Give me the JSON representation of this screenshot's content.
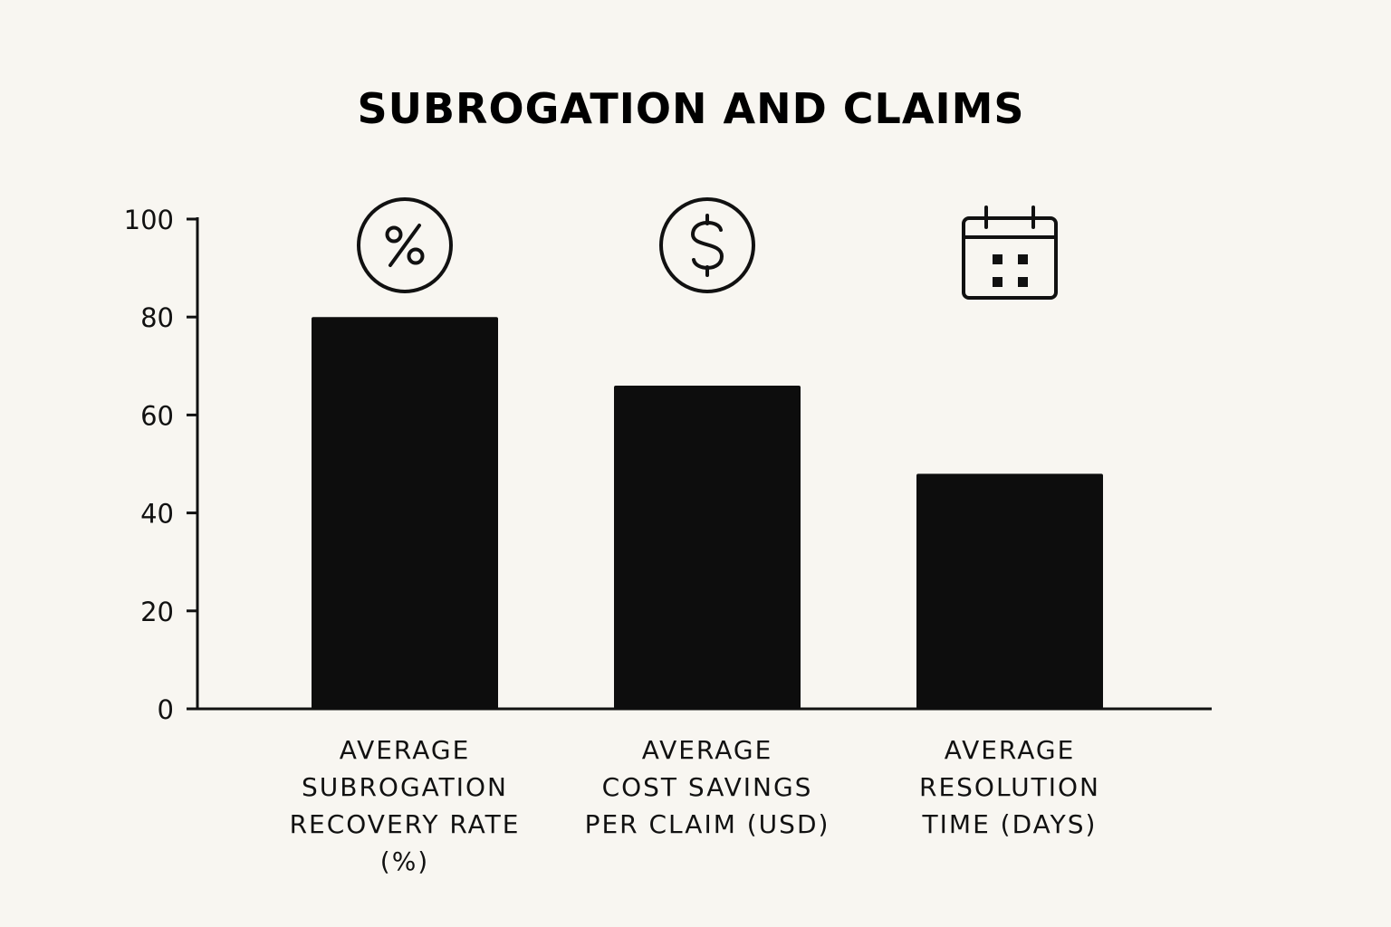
{
  "chart_data": {
    "type": "bar",
    "title": "SUBROGATION AND CLAIMS",
    "xlabel": "",
    "ylabel": "",
    "ylim": [
      0,
      100
    ],
    "yticks": [
      0,
      20,
      40,
      60,
      80,
      100
    ],
    "grid": false,
    "legend": "none",
    "categories": [
      [
        "AVERAGE",
        "SUBROGATION",
        "RECOVERY RATE",
        "(%)"
      ],
      [
        "AVERAGE",
        "COST SAVINGS",
        "PER CLAIM (USD)"
      ],
      [
        "AVERAGE",
        "RESOLUTION",
        "TIME (DAYS)"
      ]
    ],
    "values": [
      80,
      66,
      48
    ],
    "icons": [
      "percent-icon",
      "dollar-icon",
      "calendar-icon"
    ],
    "colors": {
      "bar": "#0d0d0d",
      "axis": "#111111",
      "background": "#f8f6f1"
    }
  }
}
